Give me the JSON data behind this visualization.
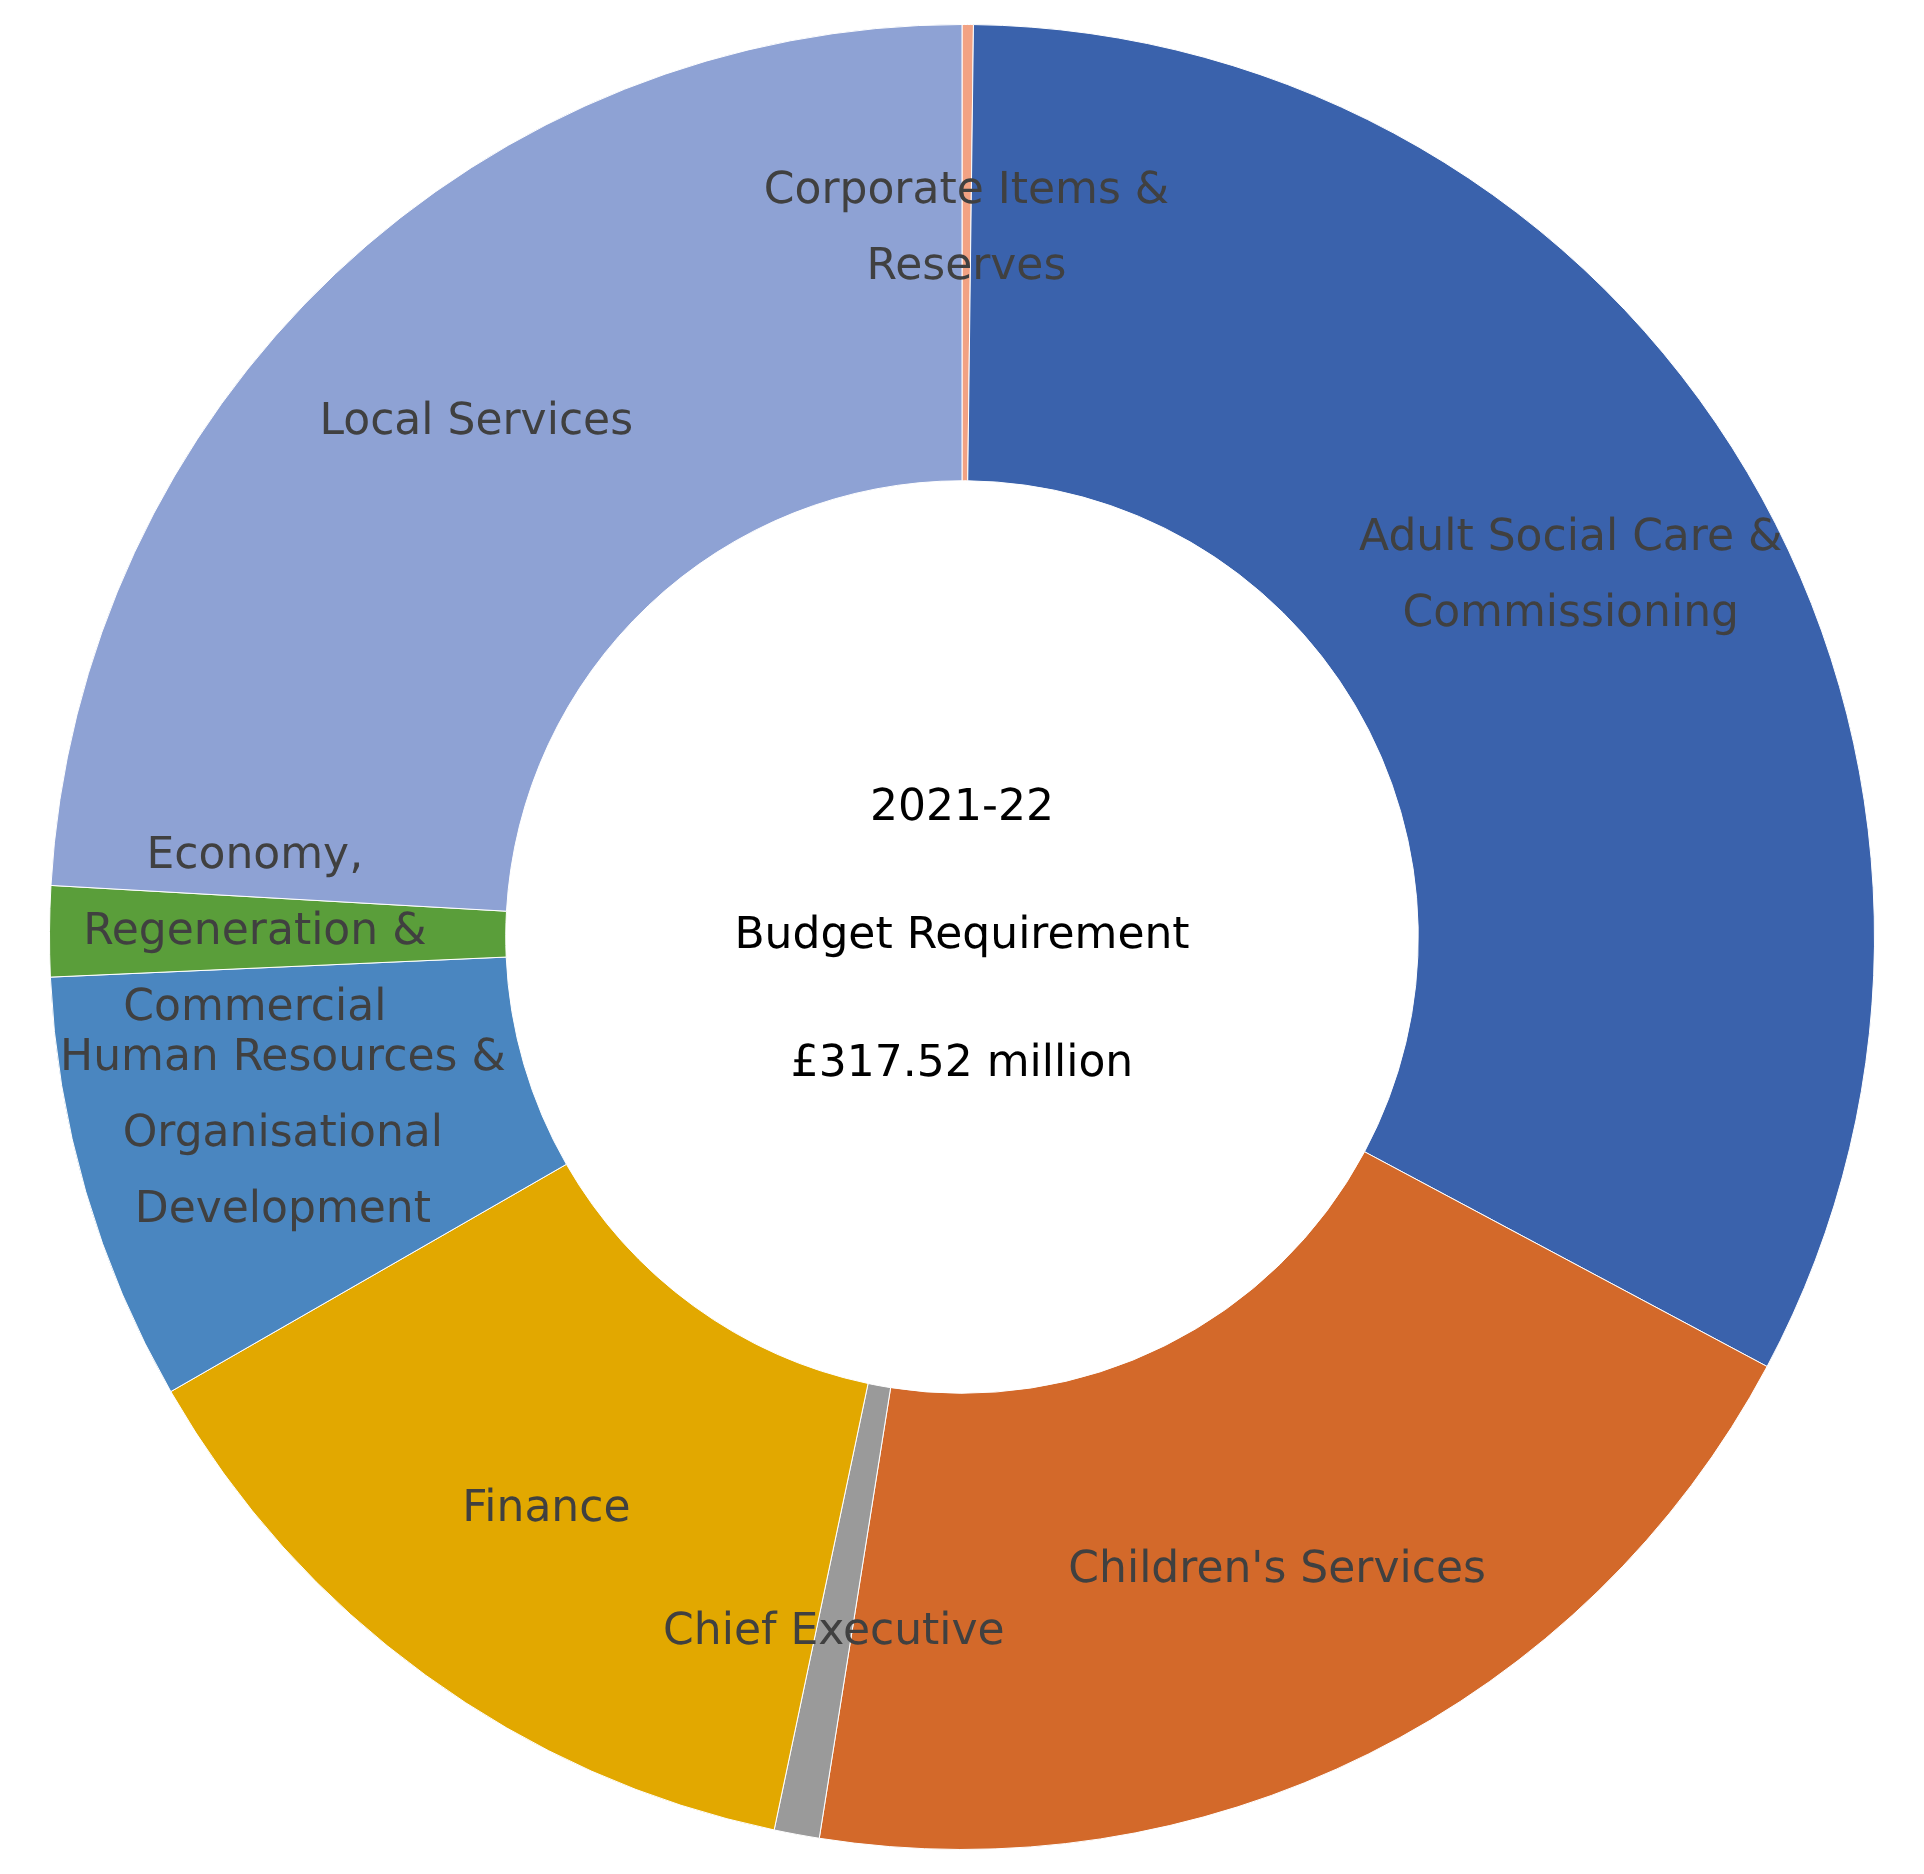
{
  "chart_data": {
    "type": "donut",
    "categories": [
      "Corporate Items & Reserves",
      "Adult Social Care & Commissioning",
      "Children's Services",
      "Chief Executive",
      "Finance",
      "Human Resources & Organisational Development",
      "Economy, Regeneration & Commercial",
      "Local Services"
    ],
    "values": [
      0.2,
      32.6,
      19.7,
      0.8,
      13.4,
      7.6,
      1.6,
      24.1
    ],
    "colors": [
      "#f2a283",
      "#3a62ac",
      "#d3692a",
      "#9a9a9a",
      "#e2a800",
      "#4a86c0",
      "#5a9e3a",
      "#8ea2d4"
    ],
    "annotations": [
      "2021-22",
      "Budget Requirement",
      "£317.52 million"
    ],
    "legend": false
  }
}
